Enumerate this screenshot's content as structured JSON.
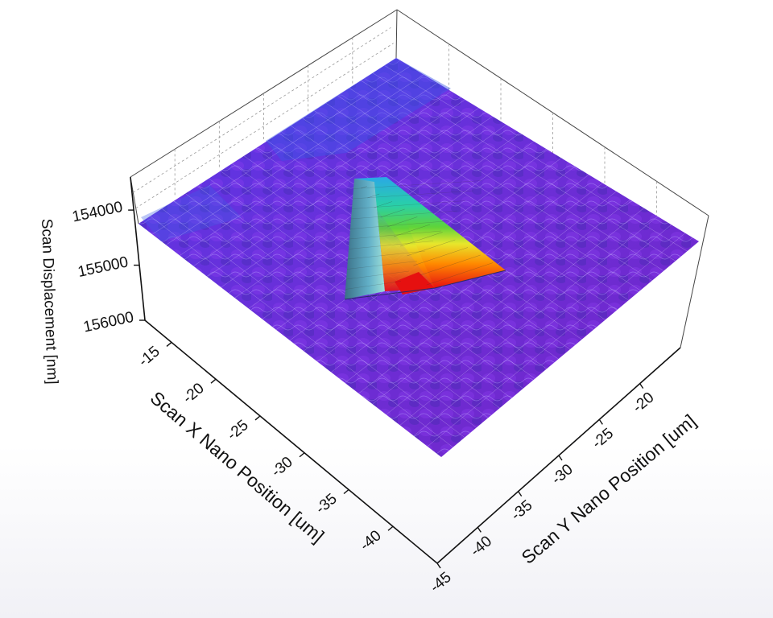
{
  "chart_data": {
    "type": "surface3d",
    "x_axis": {
      "label": "Scan X Nano Position [um]",
      "ticks": [
        "-15",
        "-20",
        "-25",
        "-30",
        "-35",
        "-40"
      ],
      "range": [
        -12,
        -45
      ]
    },
    "y_axis": {
      "label": "Scan Y Nano Position [um]",
      "ticks": [
        "-20",
        "-25",
        "-30",
        "-35",
        "-40",
        "-45"
      ],
      "range": [
        -15,
        -45
      ]
    },
    "z_axis": {
      "label": "Scan Displacement [nm]",
      "ticks": [
        "154000",
        "155000",
        "156000"
      ],
      "range": [
        153400,
        156000
      ],
      "reversed": true
    },
    "surface_base_displacement": 154400,
    "indent": {
      "shape": "triangular pyramid",
      "max_displacement": 156000
    },
    "colormap": [
      "#6a2bd9",
      "#3f4fe0",
      "#1e9fe0",
      "#27c9a6",
      "#4ad14a",
      "#e8e62a",
      "#ff8a00",
      "#e81010"
    ],
    "grid": true,
    "wireframe": true
  }
}
